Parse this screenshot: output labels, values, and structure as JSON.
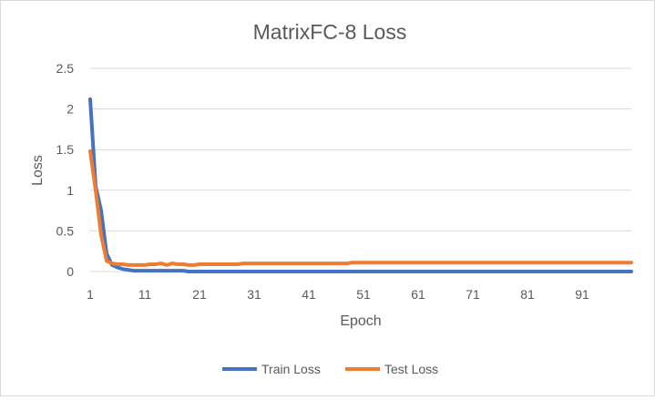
{
  "chart_data": {
    "type": "line",
    "title": "MatrixFC-8 Loss",
    "xlabel": "Epoch",
    "ylabel": "Loss",
    "ylim": [
      0,
      2.5
    ],
    "yticks": [
      "0",
      "0.5",
      "1",
      "1.5",
      "2",
      "2.5"
    ],
    "xticks": [
      "1",
      "11",
      "21",
      "31",
      "41",
      "51",
      "61",
      "71",
      "81",
      "91"
    ],
    "grid": true,
    "legend_position": "bottom",
    "colors": {
      "train": "#4472c4",
      "test": "#ed7d31",
      "grid": "#d9d9d9",
      "text": "#595959"
    },
    "series": [
      {
        "name": "Train Loss",
        "values": [
          2.12,
          1.05,
          0.75,
          0.22,
          0.08,
          0.05,
          0.03,
          0.02,
          0.01,
          0.01,
          0.01,
          0.01,
          0.01,
          0.01,
          0.01,
          0.01,
          0.01,
          0.01,
          0.0,
          0.0,
          0.0,
          0.0,
          0.0,
          0.0,
          0.0,
          0.0,
          0.0,
          0.0,
          0.0,
          0.0,
          0.0,
          0.0,
          0.0,
          0.0,
          0.0,
          0.0,
          0.0,
          0.0,
          0.0,
          0.0,
          0.0,
          0.0,
          0.0,
          0.0,
          0.0,
          0.0,
          0.0,
          0.0,
          0.0,
          0.0,
          0.0,
          0.0,
          0.0,
          0.0,
          0.0,
          0.0,
          0.0,
          0.0,
          0.0,
          0.0,
          0.0,
          0.0,
          0.0,
          0.0,
          0.0,
          0.0,
          0.0,
          0.0,
          0.0,
          0.0,
          0.0,
          0.0,
          0.0,
          0.0,
          0.0,
          0.0,
          0.0,
          0.0,
          0.0,
          0.0,
          0.0,
          0.0,
          0.0,
          0.0,
          0.0,
          0.0,
          0.0,
          0.0,
          0.0,
          0.0,
          0.0,
          0.0,
          0.0,
          0.0,
          0.0,
          0.0,
          0.0,
          0.0,
          0.0,
          0.0
        ]
      },
      {
        "name": "Test Loss",
        "values": [
          1.48,
          1.0,
          0.45,
          0.13,
          0.1,
          0.09,
          0.09,
          0.08,
          0.08,
          0.08,
          0.08,
          0.09,
          0.09,
          0.1,
          0.08,
          0.1,
          0.09,
          0.09,
          0.08,
          0.08,
          0.09,
          0.09,
          0.09,
          0.09,
          0.09,
          0.09,
          0.09,
          0.09,
          0.1,
          0.1,
          0.1,
          0.1,
          0.1,
          0.1,
          0.1,
          0.1,
          0.1,
          0.1,
          0.1,
          0.1,
          0.1,
          0.1,
          0.1,
          0.1,
          0.1,
          0.1,
          0.1,
          0.1,
          0.11,
          0.11,
          0.11,
          0.11,
          0.11,
          0.11,
          0.11,
          0.11,
          0.11,
          0.11,
          0.11,
          0.11,
          0.11,
          0.11,
          0.11,
          0.11,
          0.11,
          0.11,
          0.11,
          0.11,
          0.11,
          0.11,
          0.11,
          0.11,
          0.11,
          0.11,
          0.11,
          0.11,
          0.11,
          0.11,
          0.11,
          0.11,
          0.11,
          0.11,
          0.11,
          0.11,
          0.11,
          0.11,
          0.11,
          0.11,
          0.11,
          0.11,
          0.11,
          0.11,
          0.11,
          0.11,
          0.11,
          0.11,
          0.11,
          0.11,
          0.11,
          0.11
        ]
      }
    ]
  }
}
